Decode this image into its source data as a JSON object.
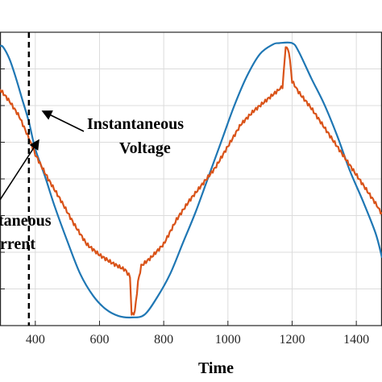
{
  "chart_data": {
    "type": "line",
    "xlabel": "Time",
    "ylabel": "",
    "xlim": [
      290,
      1480
    ],
    "ylim": [
      -1.08,
      1.08
    ],
    "xticks": [
      400,
      600,
      800,
      1000,
      1200,
      1400
    ],
    "grid": true,
    "colors": {
      "voltage": "#1f77b4",
      "current": "#d95319",
      "marker": "#000000"
    },
    "series": [
      {
        "key": "voltage",
        "points": [
          [
            290,
            0.98
          ],
          [
            300,
            0.97
          ],
          [
            320,
            0.88
          ],
          [
            340,
            0.74
          ],
          [
            360,
            0.58
          ],
          [
            380,
            0.42
          ],
          [
            400,
            0.22
          ],
          [
            430,
            0.02
          ],
          [
            460,
            -0.2
          ],
          [
            500,
            -0.46
          ],
          [
            540,
            -0.7
          ],
          [
            580,
            -0.86
          ],
          [
            620,
            -0.96
          ],
          [
            660,
            -1.01
          ],
          [
            700,
            -1.02
          ],
          [
            740,
            -1.0
          ],
          [
            780,
            -0.87
          ],
          [
            820,
            -0.7
          ],
          [
            860,
            -0.47
          ],
          [
            900,
            -0.24
          ],
          [
            940,
            0.02
          ],
          [
            980,
            0.28
          ],
          [
            1020,
            0.54
          ],
          [
            1060,
            0.76
          ],
          [
            1100,
            0.92
          ],
          [
            1140,
            0.99
          ],
          [
            1160,
            1.0
          ],
          [
            1200,
            1.0
          ],
          [
            1220,
            0.94
          ],
          [
            1260,
            0.74
          ],
          [
            1300,
            0.55
          ],
          [
            1340,
            0.32
          ],
          [
            1380,
            0.06
          ],
          [
            1420,
            -0.16
          ],
          [
            1460,
            -0.4
          ],
          [
            1480,
            -0.58
          ]
        ]
      },
      {
        "key": "current",
        "points": [
          [
            290,
            0.66
          ],
          [
            320,
            0.57
          ],
          [
            350,
            0.46
          ],
          [
            380,
            0.3
          ],
          [
            400,
            0.18
          ],
          [
            440,
            0.0
          ],
          [
            480,
            -0.16
          ],
          [
            520,
            -0.33
          ],
          [
            560,
            -0.48
          ],
          [
            600,
            -0.56
          ],
          [
            640,
            -0.62
          ],
          [
            680,
            -0.67
          ],
          [
            695,
            -0.72
          ],
          [
            700,
            -1.0
          ],
          [
            710,
            -0.98
          ],
          [
            720,
            -0.76
          ],
          [
            730,
            -0.64
          ],
          [
            760,
            -0.58
          ],
          [
            800,
            -0.48
          ],
          [
            840,
            -0.3
          ],
          [
            880,
            -0.16
          ],
          [
            920,
            -0.04
          ],
          [
            960,
            0.08
          ],
          [
            1000,
            0.24
          ],
          [
            1040,
            0.4
          ],
          [
            1080,
            0.5
          ],
          [
            1120,
            0.58
          ],
          [
            1150,
            0.64
          ],
          [
            1170,
            0.68
          ],
          [
            1180,
            0.97
          ],
          [
            1190,
            0.94
          ],
          [
            1200,
            0.72
          ],
          [
            1220,
            0.64
          ],
          [
            1260,
            0.52
          ],
          [
            1300,
            0.38
          ],
          [
            1340,
            0.24
          ],
          [
            1380,
            0.1
          ],
          [
            1420,
            -0.04
          ],
          [
            1460,
            -0.18
          ],
          [
            1480,
            -0.26
          ]
        ]
      }
    ],
    "marker_x": 380
  },
  "annotations": {
    "voltage_line1": "Instantaneous",
    "voltage_line2": "Voltage",
    "current_line1": "taneous",
    "current_line2": "rrent"
  }
}
